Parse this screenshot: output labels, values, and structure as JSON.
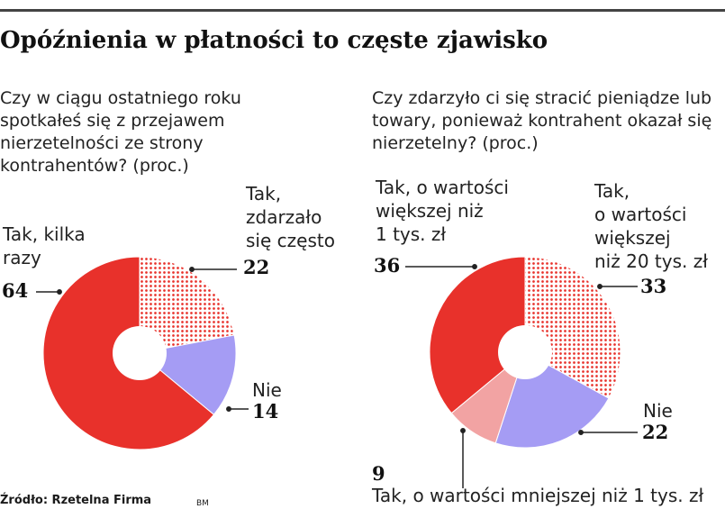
{
  "title": "Opóźnienia w płatności to częste zjawisko",
  "colors": {
    "red": "#e8312b",
    "pattern": "#e8312b",
    "blue": "#a59cf4",
    "pink": "#f2a3a3"
  },
  "chart_data": [
    {
      "type": "pie",
      "title": "Czy w ciągu ostatniego roku spotkałeś się z przejawem nierzetelności ze strony kontrahentów? (proc.)",
      "slices": [
        {
          "label": "Tak, zdarzało się często",
          "value": 22,
          "fill": "dots"
        },
        {
          "label": "Nie",
          "value": 14,
          "fill": "blue"
        },
        {
          "label": "Tak, kilka razy",
          "value": 64,
          "fill": "red"
        }
      ]
    },
    {
      "type": "pie",
      "title": "Czy zdarzyło ci się stracić pieniądze lub towary, ponieważ kontrahent okazał się nierzetelny? (proc.)",
      "slices": [
        {
          "label": "Tak, o wartości większej niż 20 tys. zł",
          "value": 33,
          "fill": "dots"
        },
        {
          "label": "Nie",
          "value": 22,
          "fill": "blue"
        },
        {
          "label": "Tak, o wartości mniejszej niż 1 tys. zł",
          "value": 9,
          "fill": "pink"
        },
        {
          "label": "Tak, o wartości większej niż 1 tys. zł",
          "value": 36,
          "fill": "red"
        }
      ]
    }
  ],
  "labels": {
    "c1_often_line1": "Tak,",
    "c1_often_line2": "zdarzało",
    "c1_often_line3": "się często",
    "c1_often_value": "22",
    "c1_few_line1": "Tak, kilka",
    "c1_few_line2": "razy",
    "c1_few_value": "64",
    "c1_no_label": "Nie",
    "c1_no_value": "14",
    "c2_gt1k_line1": "Tak, o wartości",
    "c2_gt1k_line2": "większej niż",
    "c2_gt1k_line3": "1 tys. zł",
    "c2_gt1k_value": "36",
    "c2_gt20k_line1": "Tak,",
    "c2_gt20k_line2": "o wartości",
    "c2_gt20k_line3": "większej",
    "c2_gt20k_line4": "niż 20 tys. zł",
    "c2_gt20k_value": "33",
    "c2_no_label": "Nie",
    "c2_no_value": "22",
    "c2_lt1k_value": "9",
    "c2_lt1k_label": "Tak, o wartości mniejszej niż 1 tys. zł"
  },
  "source": "Źródło: Rzetelna Firma",
  "badge": "BM"
}
